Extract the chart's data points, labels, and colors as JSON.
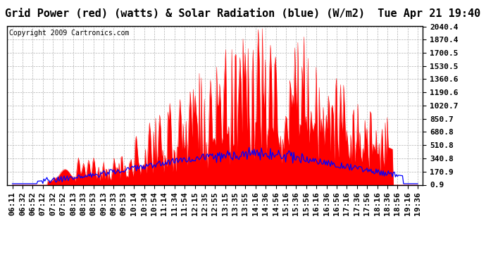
{
  "title": "Grid Power (red) (watts) & Solar Radiation (blue) (W/m2)  Tue Apr 21 19:40",
  "copyright": "Copyright 2009 Cartronics.com",
  "yticks": [
    0.9,
    170.9,
    340.8,
    510.8,
    680.8,
    850.7,
    1020.7,
    1190.6,
    1360.6,
    1530.5,
    1700.5,
    1870.4,
    2040.4
  ],
  "ymin": 0.9,
  "ymax": 2040.4,
  "bg_color": "#ffffff",
  "plot_bg_color": "#ffffff",
  "grid_color": "#aaaaaa",
  "red_color": "#ff0000",
  "blue_color": "#0000ff",
  "title_fontsize": 11,
  "copyright_fontsize": 7,
  "tick_fontsize": 8,
  "xtick_labels": [
    "06:11",
    "06:32",
    "06:52",
    "07:12",
    "07:32",
    "07:52",
    "08:13",
    "08:33",
    "08:53",
    "09:13",
    "09:33",
    "09:53",
    "10:14",
    "10:34",
    "10:54",
    "11:14",
    "11:34",
    "11:54",
    "12:15",
    "12:35",
    "12:55",
    "13:15",
    "13:35",
    "13:55",
    "14:16",
    "14:36",
    "14:56",
    "15:16",
    "15:36",
    "15:56",
    "16:16",
    "16:36",
    "16:56",
    "17:16",
    "17:36",
    "17:56",
    "18:16",
    "18:36",
    "18:56",
    "19:16",
    "19:36"
  ],
  "n_labels": 41
}
